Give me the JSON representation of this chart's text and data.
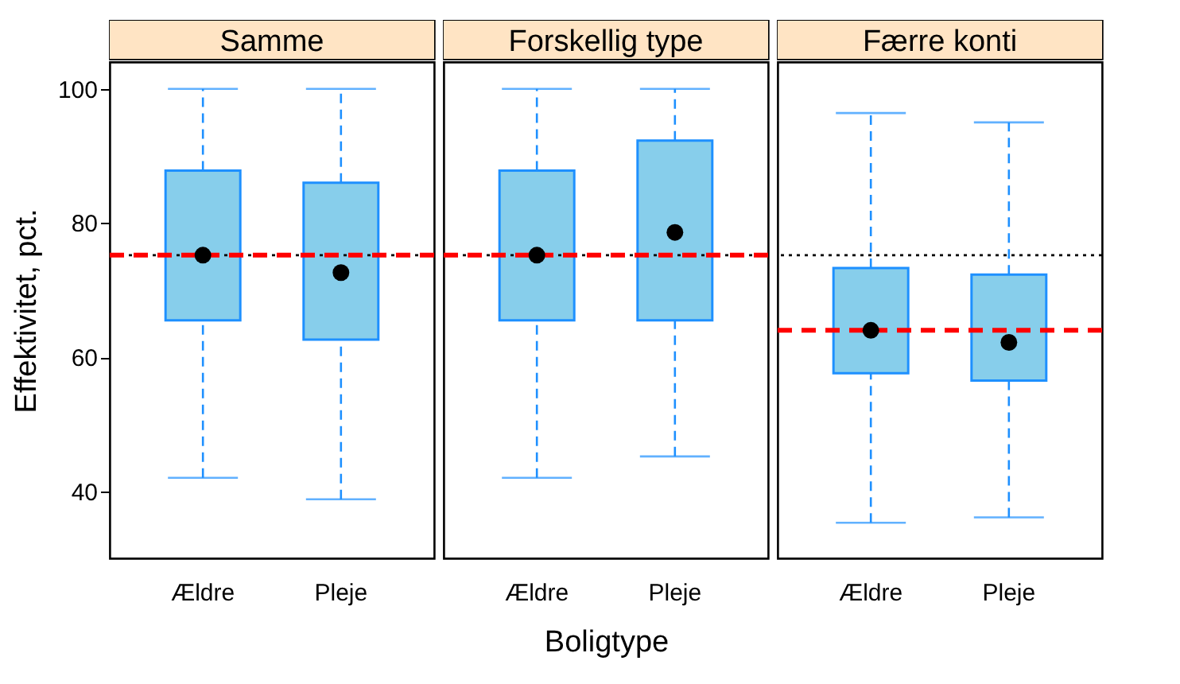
{
  "chart_data": [
    {
      "type": "box",
      "title": "Samme",
      "categories": [
        "Ældre",
        "Pleje"
      ],
      "ylabel": "Effektivitet, pct.",
      "colors": [
        "#87ceeb",
        "#87ceeb"
      ],
      "ylim": [
        30,
        104
      ],
      "yticks": [
        40,
        60,
        80,
        100
      ],
      "marker": "circle",
      "boxes": [
        {
          "low": 42.0,
          "q1": 65.5,
          "median": 75.2,
          "q3": 87.8,
          "high": 100
        },
        {
          "low": 38.8,
          "q1": 62.6,
          "median": 72.6,
          "q3": 86.0,
          "high": 100
        }
      ],
      "ref_lines": [
        {
          "axis": "y",
          "value": 75.2,
          "color": "#000000",
          "line_style": "dotted"
        },
        {
          "axis": "y",
          "value": 75.2,
          "color": "#ff0000",
          "line_style": "dashed"
        }
      ]
    },
    {
      "type": "box",
      "title": "Forskellig type",
      "categories": [
        "Ældre",
        "Pleje"
      ],
      "xlabel": "Boligtype",
      "colors": [
        "#87ceeb",
        "#87ceeb"
      ],
      "ylim": [
        30,
        104
      ],
      "yticks": [
        40,
        60,
        80,
        100
      ],
      "tick_labels": "x",
      "marker": "circle",
      "boxes": [
        {
          "low": 42.0,
          "q1": 65.5,
          "median": 75.2,
          "q3": 87.8,
          "high": 100
        },
        {
          "low": 45.2,
          "q1": 65.5,
          "median": 78.6,
          "q3": 92.3,
          "high": 100
        }
      ],
      "ref_lines": [
        {
          "axis": "y",
          "value": 75.2,
          "color": "#000000",
          "line_style": "dotted"
        },
        {
          "axis": "y",
          "value": 75.2,
          "color": "#ff0000",
          "line_style": "dashed"
        }
      ]
    },
    {
      "type": "box",
      "title": "Færre konti",
      "categories": [
        "Ældre",
        "Pleje"
      ],
      "colors": [
        "#87ceeb",
        "#87ceeb"
      ],
      "ylim": [
        30,
        104
      ],
      "yticks": [
        40,
        60,
        80,
        100
      ],
      "tick_labels": "x",
      "marker": "circle",
      "boxes": [
        {
          "low": 35.3,
          "q1": 57.6,
          "median": 64.0,
          "q3": 73.3,
          "high": 96.4
        },
        {
          "low": 36.1,
          "q1": 56.5,
          "median": 62.2,
          "q3": 72.3,
          "high": 95.0
        }
      ],
      "ref_lines": [
        {
          "axis": "y",
          "value": 75.2,
          "color": "#000000",
          "line_style": "dotted"
        },
        {
          "axis": "y",
          "value": 64.0,
          "color": "#ff0000",
          "line_style": "dashed"
        }
      ]
    }
  ]
}
